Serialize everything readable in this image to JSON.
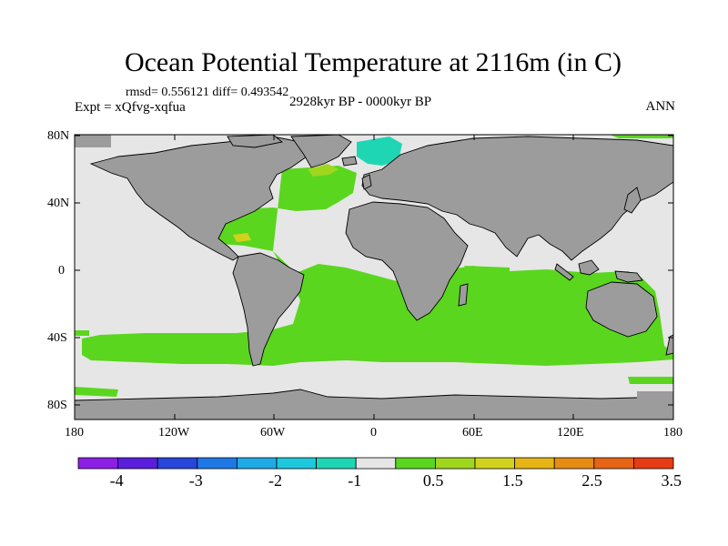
{
  "title": "Ocean Potential Temperature at 2116m (in C)",
  "stats": "rmsd= 0.556121  diff= 0.493542",
  "expt": "Expt = xQfvg-xqfua",
  "period": "2928kyr BP - 0000kyr BP",
  "season": "ANN",
  "axes": {
    "lat_labels": [
      "80N",
      "40N",
      "0",
      "40S",
      "80S"
    ],
    "lon_labels": [
      "180",
      "120W",
      "60W",
      "0",
      "60E",
      "120E",
      "180"
    ]
  },
  "colors": {
    "land": "#9c9c9c",
    "zero_band": "#e6e6e6",
    "positive_small": "#5ad61e",
    "negative_small": "#1ed6b4",
    "coast": "#000000"
  },
  "colorbar": {
    "colors": [
      "#8c1ee6",
      "#5a1edc",
      "#2846dc",
      "#1e78e6",
      "#1eaae6",
      "#1ec8dc",
      "#1ed6b4",
      "#e6e6e6",
      "#5ad61e",
      "#a0d61e",
      "#d2d21e",
      "#e6b414",
      "#e68c14",
      "#e66414",
      "#e63c14"
    ],
    "labels": [
      "-4",
      "-3",
      "-2",
      "-1",
      "0.5",
      "1.5",
      "2.5",
      "3.5"
    ]
  }
}
